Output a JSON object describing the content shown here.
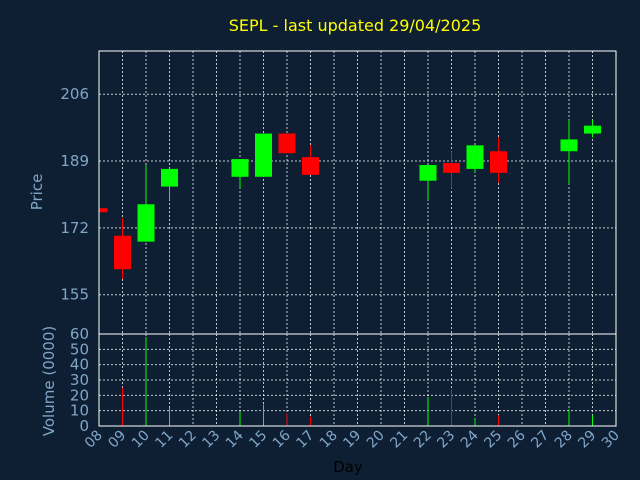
{
  "chart_data": [
    {
      "type": "candlestick",
      "title": "SEPL - last updated 29/04/2025",
      "xlabel": "Day",
      "ylabel": "Price",
      "ylim": [
        145,
        217
      ],
      "yticks": [
        155,
        172,
        189,
        206
      ],
      "x_ticks": [
        "08",
        "09",
        "10",
        "11",
        "12",
        "13",
        "14",
        "15",
        "16",
        "17",
        "18",
        "19",
        "20",
        "21",
        "22",
        "23",
        "24",
        "25",
        "26",
        "27",
        "28",
        "29",
        "30"
      ],
      "grid": true,
      "colors": {
        "up": "#00ff00",
        "down": "#ff0000",
        "title": "#ffff00",
        "axis": "#7fa7c8",
        "background": "#0f1f33"
      },
      "candles": [
        {
          "day": "08",
          "open": 177,
          "close": 176,
          "high": 177,
          "low": 176
        },
        {
          "day": "09",
          "open": 170,
          "close": 161.5,
          "high": 174.5,
          "low": 159
        },
        {
          "day": "10",
          "open": 168.5,
          "close": 178,
          "high": 188,
          "low": 168.5
        },
        {
          "day": "11",
          "open": 182.5,
          "close": 187,
          "high": 187,
          "low": 179
        },
        {
          "day": "14",
          "open": 185,
          "close": 189.5,
          "high": 189.5,
          "low": 182
        },
        {
          "day": "15",
          "open": 185,
          "close": 196,
          "high": 196,
          "low": 185
        },
        {
          "day": "16",
          "open": 196,
          "close": 191,
          "high": 196,
          "low": 191
        },
        {
          "day": "17",
          "open": 190,
          "close": 185.5,
          "high": 193,
          "low": 185.5
        },
        {
          "day": "22",
          "open": 184,
          "close": 188,
          "high": 188,
          "low": 179
        },
        {
          "day": "23",
          "open": 188.5,
          "close": 186,
          "high": 191.5,
          "low": 182
        },
        {
          "day": "24",
          "open": 187,
          "close": 193,
          "high": 193,
          "low": 186
        },
        {
          "day": "25",
          "open": 191.5,
          "close": 186,
          "high": 195,
          "low": 183.5
        },
        {
          "day": "28",
          "open": 191.5,
          "close": 194.5,
          "high": 199.5,
          "low": 183
        },
        {
          "day": "29",
          "open": 196,
          "close": 198,
          "high": 199.5,
          "low": 195
        }
      ]
    },
    {
      "type": "bar",
      "ylabel": "Volume (0000)",
      "ylim": [
        0,
        60
      ],
      "yticks": [
        0,
        10,
        20,
        30,
        40,
        50,
        60
      ],
      "bars": [
        {
          "day": "09",
          "value": 25,
          "direction": "down"
        },
        {
          "day": "10",
          "value": 58,
          "direction": "up"
        },
        {
          "day": "11",
          "value": 12,
          "direction": "up"
        },
        {
          "day": "14",
          "value": 9,
          "direction": "up"
        },
        {
          "day": "15",
          "value": 14,
          "direction": "up"
        },
        {
          "day": "16",
          "value": 8,
          "direction": "down"
        },
        {
          "day": "17",
          "value": 6,
          "direction": "down"
        },
        {
          "day": "22",
          "value": 19,
          "direction": "up"
        },
        {
          "day": "23",
          "value": 24,
          "direction": "down"
        },
        {
          "day": "24",
          "value": 5,
          "direction": "up"
        },
        {
          "day": "25",
          "value": 7,
          "direction": "down"
        },
        {
          "day": "28",
          "value": 11,
          "direction": "up"
        },
        {
          "day": "29",
          "value": 7,
          "direction": "up"
        }
      ]
    }
  ]
}
